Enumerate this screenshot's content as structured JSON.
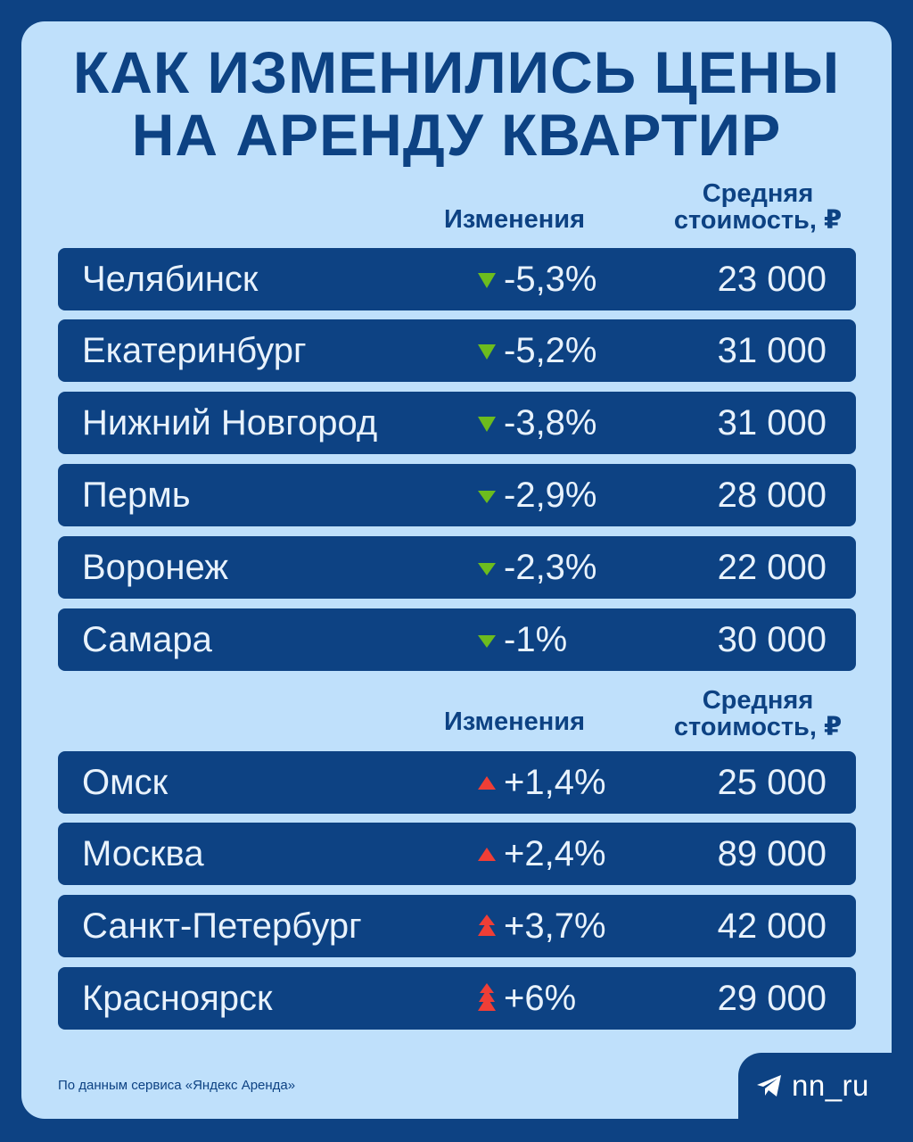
{
  "title_line1": "КАК ИЗМЕНИЛИСЬ ЦЕНЫ",
  "title_line2": "НА АРЕНДУ КВАРТИР",
  "header_change": "Изменения",
  "header_price_line1": "Средняя",
  "header_price_line2": "стоимость, ₽",
  "colors": {
    "down": "#6cbc1e",
    "up": "#ef3e36",
    "row_bg": "#0d4283",
    "card_bg": "#bfe0fb"
  },
  "decreases": [
    {
      "city": "Челябинск",
      "change": "-5,3%",
      "price": "23 000",
      "arrow": "down-arrow-icon"
    },
    {
      "city": "Екатеринбург",
      "change": "-5,2%",
      "price": "31 000",
      "arrow": "down-arrow-icon"
    },
    {
      "city": "Нижний Новгород",
      "change": "-3,8%",
      "price": "31 000",
      "arrow": "down-arrow-icon"
    },
    {
      "city": "Пермь",
      "change": "-2,9%",
      "price": "28 000",
      "arrow": "down-arrow-icon"
    },
    {
      "city": "Воронеж",
      "change": "-2,3%",
      "price": "22 000",
      "arrow": "down-arrow-icon"
    },
    {
      "city": "Самара",
      "change": "-1%",
      "price": "30 000",
      "arrow": "down-arrow-icon"
    }
  ],
  "increases": [
    {
      "city": "Омск",
      "change": "+1,4%",
      "price": "25 000",
      "arrow": "up-arrow-icon"
    },
    {
      "city": "Москва",
      "change": "+2,4%",
      "price": "89 000",
      "arrow": "up-arrow-icon"
    },
    {
      "city": "Санкт-Петербург",
      "change": "+3,7%",
      "price": "42 000",
      "arrow": "up-arrow-icon"
    },
    {
      "city": "Красноярск",
      "change": "+6%",
      "price": "29 000",
      "arrow": "up-arrow-icon"
    }
  ],
  "source": "По данным сервиса «Яндекс Аренда»",
  "brand": {
    "name": "nn_ru",
    "icon": "telegram-icon"
  }
}
